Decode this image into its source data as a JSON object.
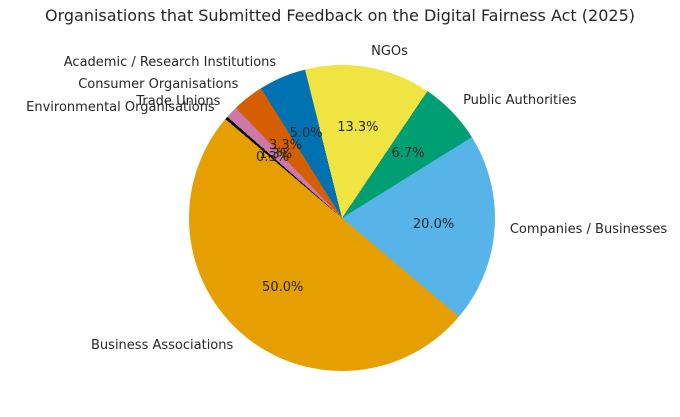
{
  "figure": {
    "background": "#ffffff",
    "text_color": "#262626"
  },
  "chart_data": {
    "type": "pie",
    "title": "Organisations that Submitted Feedback on the Digital Fairness Act (2025)",
    "slices": [
      {
        "label": "NGOs",
        "value": 13.3,
        "pct_label": "13.3%",
        "color": "#F0E442"
      },
      {
        "label": "Public Authorities",
        "value": 6.7,
        "pct_label": "6.7%",
        "color": "#009E73"
      },
      {
        "label": "Companies / Businesses",
        "value": 20.0,
        "pct_label": "20.0%",
        "color": "#56B4E9"
      },
      {
        "label": "Business Associations",
        "value": 50.0,
        "pct_label": "50.0%",
        "color": "#E69F00"
      },
      {
        "label": "Environmental Organisations",
        "value": 0.3,
        "pct_label": "0.3%",
        "color": "#000000"
      },
      {
        "label": "Trade Unions",
        "value": 1.3,
        "pct_label": "1.3%",
        "color": "#CC79A7"
      },
      {
        "label": "Consumer Organisations",
        "value": 3.3,
        "pct_label": "3.3%",
        "color": "#D55E00"
      },
      {
        "label": "Academic / Research Institutions",
        "value": 5.0,
        "pct_label": "5.0%",
        "color": "#0072B2"
      }
    ],
    "layout_hints": {
      "start_angle_from_top_deg": -14,
      "direction": "clockwise",
      "legend": "none",
      "grid": "off",
      "label_radius_factor": 1.1,
      "pct_radius_factor": 0.6
    }
  }
}
